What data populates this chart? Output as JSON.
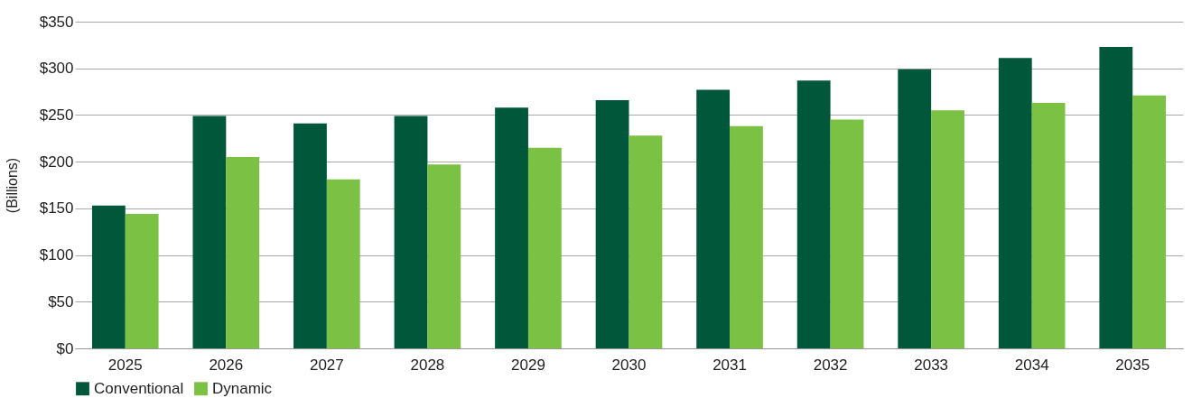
{
  "chart_data": {
    "type": "bar",
    "ylabel": "(Billions)",
    "categories": [
      "2025",
      "2026",
      "2027",
      "2028",
      "2029",
      "2030",
      "2031",
      "2032",
      "2033",
      "2034",
      "2035"
    ],
    "series": [
      {
        "name": "Conventional",
        "color": "#00573a",
        "values": [
          153,
          249,
          241,
          249,
          258,
          266,
          277,
          287,
          299,
          311,
          323
        ]
      },
      {
        "name": "Dynamic",
        "color": "#7bc143",
        "values": [
          144,
          205,
          181,
          197,
          215,
          228,
          238,
          245,
          255,
          263,
          271
        ]
      }
    ],
    "ylim": [
      0,
      350
    ],
    "yticks": [
      {
        "value": 0,
        "label": "$0"
      },
      {
        "value": 50,
        "label": "$50"
      },
      {
        "value": 100,
        "label": "$100"
      },
      {
        "value": 150,
        "label": "$150"
      },
      {
        "value": 200,
        "label": "$200"
      },
      {
        "value": 250,
        "label": "$250"
      },
      {
        "value": 300,
        "label": "$300"
      },
      {
        "value": 350,
        "label": "$350"
      }
    ],
    "grid": "y",
    "legend": "bottom"
  }
}
